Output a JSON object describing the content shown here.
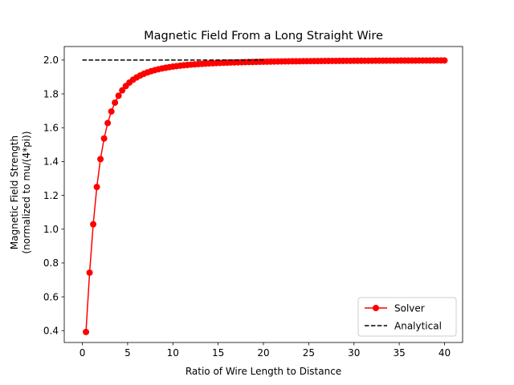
{
  "chart_data": {
    "type": "line",
    "title": "Magnetic Field From a Long Straight Wire",
    "xlabel": "Ratio of Wire Length to Distance",
    "ylabel_lines": [
      "Magnetic Field Strength",
      "(normalized to mu/(4*pi))"
    ],
    "xlim": [
      -2.0,
      42.0
    ],
    "ylim": [
      0.33,
      2.08
    ],
    "xticks": [
      0,
      5,
      10,
      15,
      20,
      25,
      30,
      35,
      40
    ],
    "yticks": [
      0.4,
      0.6,
      0.8,
      1.0,
      1.2,
      1.4,
      1.6,
      1.8,
      2.0
    ],
    "xtick_labels": [
      "0",
      "5",
      "10",
      "15",
      "20",
      "25",
      "30",
      "35",
      "40"
    ],
    "ytick_labels": [
      "0.4",
      "0.6",
      "0.8",
      "1.0",
      "1.2",
      "1.4",
      "1.6",
      "1.8",
      "2.0"
    ],
    "legend_position": "lower-right",
    "grid": false,
    "series": [
      {
        "name": "Solver",
        "style": "solid-with-circle-markers",
        "color": "#ff0000",
        "x_range": [
          0.4,
          40.0
        ],
        "x_step": 0.4,
        "model": "2x/sqrt(x^2+4)"
      },
      {
        "name": "Analytical",
        "style": "dashed",
        "color": "#000000",
        "x": [
          0.0,
          20.0
        ],
        "y": [
          2.0,
          2.0
        ]
      }
    ]
  }
}
